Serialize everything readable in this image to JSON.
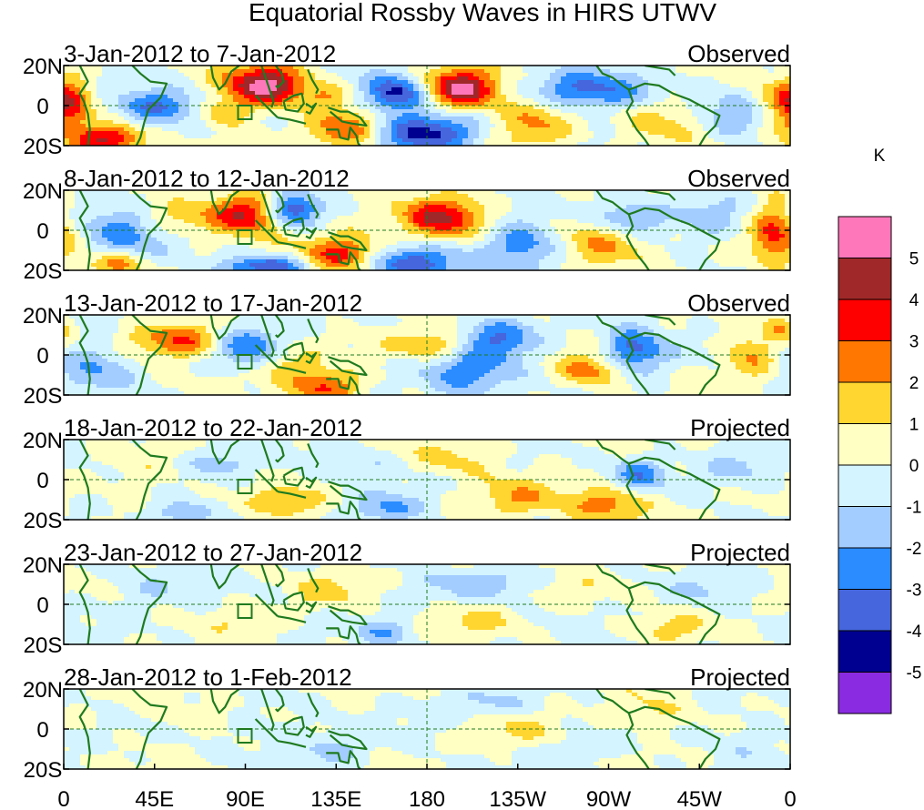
{
  "chart_data": {
    "type": "heatmap",
    "title": "Equatorial Rossby Waves in HIRS UTWV",
    "units": "K",
    "lat_ticks": [
      "20N",
      "0",
      "20S"
    ],
    "lon_ticks": [
      "0",
      "45E",
      "90E",
      "135E",
      "180",
      "135W",
      "90W",
      "45W",
      "0"
    ],
    "lon_tick_values": [
      0,
      45,
      90,
      135,
      180,
      225,
      270,
      315,
      360
    ],
    "lat_range": [
      -20,
      20
    ],
    "lon_range": [
      0,
      360
    ],
    "colorbar": {
      "tick_labels": [
        "5",
        "4",
        "3",
        "2",
        "1",
        "0",
        "-1",
        "-2",
        "-3",
        "-4",
        "-5"
      ],
      "colors": [
        "#ff77bb",
        "#a02828",
        "#ff0000",
        "#ff7700",
        "#ffd630",
        "#ffffc4",
        "#d4f4ff",
        "#a3cdff",
        "#2a8cff",
        "#4566dd",
        "#000090",
        "#8a2be2"
      ]
    },
    "panels": [
      {
        "date_range": "3-Jan-2012 to 7-Jan-2012",
        "status": "Observed",
        "features": [
          {
            "lon": 100,
            "lat": 10,
            "sx": 14,
            "sy": 7,
            "v": 5.6
          },
          {
            "lon": 197,
            "lat": 8,
            "sx": 13,
            "sy": 7,
            "v": 5.4
          },
          {
            "lon": 22,
            "lat": -17,
            "sx": 12,
            "sy": 5,
            "v": 4.5
          },
          {
            "lon": 3,
            "lat": 0,
            "sx": 7,
            "sy": 11,
            "v": 3.5
          },
          {
            "lon": 140,
            "lat": -13,
            "sx": 13,
            "sy": 7,
            "v": 3.2
          },
          {
            "lon": 80,
            "lat": -3,
            "sx": 9,
            "sy": 5,
            "v": 2.0
          },
          {
            "lon": 130,
            "lat": 5,
            "sx": 7,
            "sy": 4,
            "v": 1.5
          },
          {
            "lon": 165,
            "lat": 6,
            "sx": 11,
            "sy": 6,
            "v": -4.6
          },
          {
            "lon": 180,
            "lat": -14,
            "sx": 18,
            "sy": 7,
            "v": -4.5
          },
          {
            "lon": 260,
            "lat": 7,
            "sx": 22,
            "sy": 7,
            "v": -3.4
          },
          {
            "lon": 45,
            "lat": 0,
            "sx": 14,
            "sy": 6,
            "v": -3.3
          },
          {
            "lon": 232,
            "lat": -8,
            "sx": 14,
            "sy": 10,
            "v": 2.3
          },
          {
            "lon": 296,
            "lat": -8,
            "sx": 14,
            "sy": 8,
            "v": 1.5
          },
          {
            "lon": 332,
            "lat": -5,
            "sx": 10,
            "sy": 8,
            "v": -1.8
          },
          {
            "lon": 350,
            "lat": 4,
            "sx": 8,
            "sy": 6,
            "v": 1.4
          }
        ]
      },
      {
        "date_range": "8-Jan-2012 to 12-Jan-2012",
        "status": "Observed",
        "features": [
          {
            "lon": 92,
            "lat": 8,
            "sx": 14,
            "sy": 7,
            "v": 4.3
          },
          {
            "lon": 188,
            "lat": 6,
            "sx": 14,
            "sy": 7,
            "v": 4.2
          },
          {
            "lon": 140,
            "lat": -13,
            "sx": 14,
            "sy": 7,
            "v": 4.1
          },
          {
            "lon": 352,
            "lat": 0,
            "sx": 8,
            "sy": 11,
            "v": 3.3
          },
          {
            "lon": 270,
            "lat": -5,
            "sx": 17,
            "sy": 9,
            "v": 2.8
          },
          {
            "lon": 25,
            "lat": -17,
            "sx": 10,
            "sy": 4,
            "v": 2.5
          },
          {
            "lon": 100,
            "lat": -18,
            "sx": 14,
            "sy": 4,
            "v": -4.0
          },
          {
            "lon": 113,
            "lat": 10,
            "sx": 9,
            "sy": 6,
            "v": -4.5
          },
          {
            "lon": 170,
            "lat": -17,
            "sx": 20,
            "sy": 6,
            "v": -3.8
          },
          {
            "lon": 280,
            "lat": 5,
            "sx": 14,
            "sy": 7,
            "v": -3.2
          },
          {
            "lon": 228,
            "lat": -8,
            "sx": 14,
            "sy": 8,
            "v": -3.0
          },
          {
            "lon": 30,
            "lat": 0,
            "sx": 14,
            "sy": 8,
            "v": -2.6
          },
          {
            "lon": 55,
            "lat": 5,
            "sx": 14,
            "sy": 6,
            "v": 1.2
          },
          {
            "lon": 320,
            "lat": 8,
            "sx": 12,
            "sy": 7,
            "v": -1.6
          }
        ]
      },
      {
        "date_range": "13-Jan-2012 to 17-Jan-2012",
        "status": "Observed",
        "features": [
          {
            "lon": 60,
            "lat": 7,
            "sx": 18,
            "sy": 6,
            "v": 3.2
          },
          {
            "lon": 130,
            "lat": -16,
            "sx": 12,
            "sy": 6,
            "v": 3.5
          },
          {
            "lon": 183,
            "lat": 5,
            "sx": 14,
            "sy": 5,
            "v": 2.6
          },
          {
            "lon": 262,
            "lat": -8,
            "sx": 12,
            "sy": 6,
            "v": 2.8
          },
          {
            "lon": 340,
            "lat": 0,
            "sx": 9,
            "sy": 8,
            "v": 2.2
          },
          {
            "lon": 282,
            "lat": 2,
            "sx": 11,
            "sy": 8,
            "v": -3.6
          },
          {
            "lon": 90,
            "lat": 5,
            "sx": 12,
            "sy": 7,
            "v": -3.3
          },
          {
            "lon": 215,
            "lat": 8,
            "sx": 14,
            "sy": 7,
            "v": -3.0
          },
          {
            "lon": 200,
            "lat": -10,
            "sx": 16,
            "sy": 8,
            "v": -2.8
          },
          {
            "lon": 15,
            "lat": -5,
            "sx": 13,
            "sy": 9,
            "v": -2.0
          },
          {
            "lon": 110,
            "lat": -5,
            "sx": 10,
            "sy": 6,
            "v": 1.5
          },
          {
            "lon": 355,
            "lat": 14,
            "sx": 6,
            "sy": 5,
            "v": 1.8
          }
        ]
      },
      {
        "date_range": "18-Jan-2012 to 22-Jan-2012",
        "status": "Projected",
        "features": [
          {
            "lon": 270,
            "lat": -12,
            "sx": 14,
            "sy": 6,
            "v": 2.7
          },
          {
            "lon": 110,
            "lat": -12,
            "sx": 12,
            "sy": 5,
            "v": 2.2
          },
          {
            "lon": 225,
            "lat": -10,
            "sx": 14,
            "sy": 7,
            "v": 1.8
          },
          {
            "lon": 195,
            "lat": 10,
            "sx": 16,
            "sy": 6,
            "v": 1.2
          },
          {
            "lon": 285,
            "lat": 3,
            "sx": 9,
            "sy": 6,
            "v": -2.6
          },
          {
            "lon": 160,
            "lat": -15,
            "sx": 12,
            "sy": 5,
            "v": -2.4
          },
          {
            "lon": 58,
            "lat": -17,
            "sx": 10,
            "sy": 4,
            "v": -2.2
          },
          {
            "lon": 78,
            "lat": 8,
            "sx": 12,
            "sy": 5,
            "v": -1.5
          },
          {
            "lon": 145,
            "lat": 8,
            "sx": 14,
            "sy": 5,
            "v": -1.3
          },
          {
            "lon": 335,
            "lat": 5,
            "sx": 14,
            "sy": 7,
            "v": -1.3
          },
          {
            "lon": 40,
            "lat": 0,
            "sx": 12,
            "sy": 8,
            "v": 0.8
          }
        ]
      },
      {
        "date_range": "23-Jan-2012 to 27-Jan-2012",
        "status": "Projected",
        "features": [
          {
            "lon": 160,
            "lat": -14,
            "sx": 10,
            "sy": 5,
            "v": -1.8
          },
          {
            "lon": 210,
            "lat": 10,
            "sx": 22,
            "sy": 6,
            "v": -1.4
          },
          {
            "lon": 130,
            "lat": 6,
            "sx": 12,
            "sy": 6,
            "v": 1.2
          },
          {
            "lon": 205,
            "lat": -8,
            "sx": 14,
            "sy": 6,
            "v": 1.1
          },
          {
            "lon": 300,
            "lat": -12,
            "sx": 12,
            "sy": 5,
            "v": 1.2
          },
          {
            "lon": 90,
            "lat": -8,
            "sx": 10,
            "sy": 5,
            "v": 0.9
          },
          {
            "lon": 250,
            "lat": 8,
            "sx": 16,
            "sy": 6,
            "v": 0.7
          },
          {
            "lon": 40,
            "lat": 8,
            "sx": 14,
            "sy": 6,
            "v": -1.0
          },
          {
            "lon": 320,
            "lat": 8,
            "sx": 14,
            "sy": 6,
            "v": -0.8
          }
        ]
      },
      {
        "date_range": "28-Jan-2012 to 1-Feb-2012",
        "status": "Projected",
        "features": [
          {
            "lon": 290,
            "lat": 8,
            "sx": 12,
            "sy": 6,
            "v": 1.3
          },
          {
            "lon": 228,
            "lat": 0,
            "sx": 16,
            "sy": 6,
            "v": 0.8
          },
          {
            "lon": 135,
            "lat": -10,
            "sx": 14,
            "sy": 6,
            "v": -1.2
          },
          {
            "lon": 205,
            "lat": 12,
            "sx": 20,
            "sy": 5,
            "v": -1.1
          },
          {
            "lon": 60,
            "lat": 6,
            "sx": 16,
            "sy": 6,
            "v": 0.7
          },
          {
            "lon": 100,
            "lat": 0,
            "sx": 14,
            "sy": 7,
            "v": -0.8
          },
          {
            "lon": 340,
            "lat": -5,
            "sx": 14,
            "sy": 7,
            "v": -0.8
          },
          {
            "lon": 255,
            "lat": -10,
            "sx": 14,
            "sy": 5,
            "v": -0.7
          }
        ]
      }
    ]
  }
}
